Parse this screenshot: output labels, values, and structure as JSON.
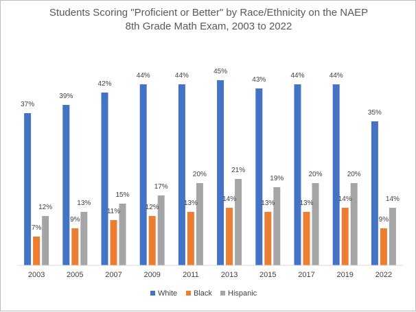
{
  "chart_data": {
    "type": "bar",
    "title_lines": [
      "Students Scoring \"Proficient or Better\" by Race/Ethnicity on the NAEP",
      "8th Grade Math Exam, 2003 to 2022"
    ],
    "categories": [
      "2003",
      "2005",
      "2007",
      "2009",
      "2011",
      "2013",
      "2015",
      "2017",
      "2019",
      "2022"
    ],
    "series": [
      {
        "name": "White",
        "color": "#4472C4",
        "values": [
          37,
          39,
          42,
          44,
          44,
          45,
          43,
          44,
          44,
          35
        ],
        "labels": [
          "37%",
          "39%",
          "42%",
          "44%",
          "44%",
          "45%",
          "43%",
          "44%",
          "44%",
          "35%"
        ]
      },
      {
        "name": "Black",
        "color": "#ED7D31",
        "values": [
          7,
          9,
          11,
          12,
          13,
          14,
          13,
          13,
          14,
          9
        ],
        "labels": [
          "7%",
          "9%",
          "11%",
          "12%",
          "13%",
          "14%",
          "13%",
          "13%",
          "14%",
          "9%"
        ]
      },
      {
        "name": "Hispanic",
        "color": "#A5A5A5",
        "values": [
          12,
          13,
          15,
          17,
          20,
          21,
          19,
          20,
          20,
          14
        ],
        "labels": [
          "12%",
          "13%",
          "15%",
          "17%",
          "20%",
          "21%",
          "19%",
          "20%",
          "20%",
          "14%"
        ]
      }
    ],
    "ylim": [
      0,
      50
    ],
    "legend_position": "bottom",
    "grid": false
  }
}
